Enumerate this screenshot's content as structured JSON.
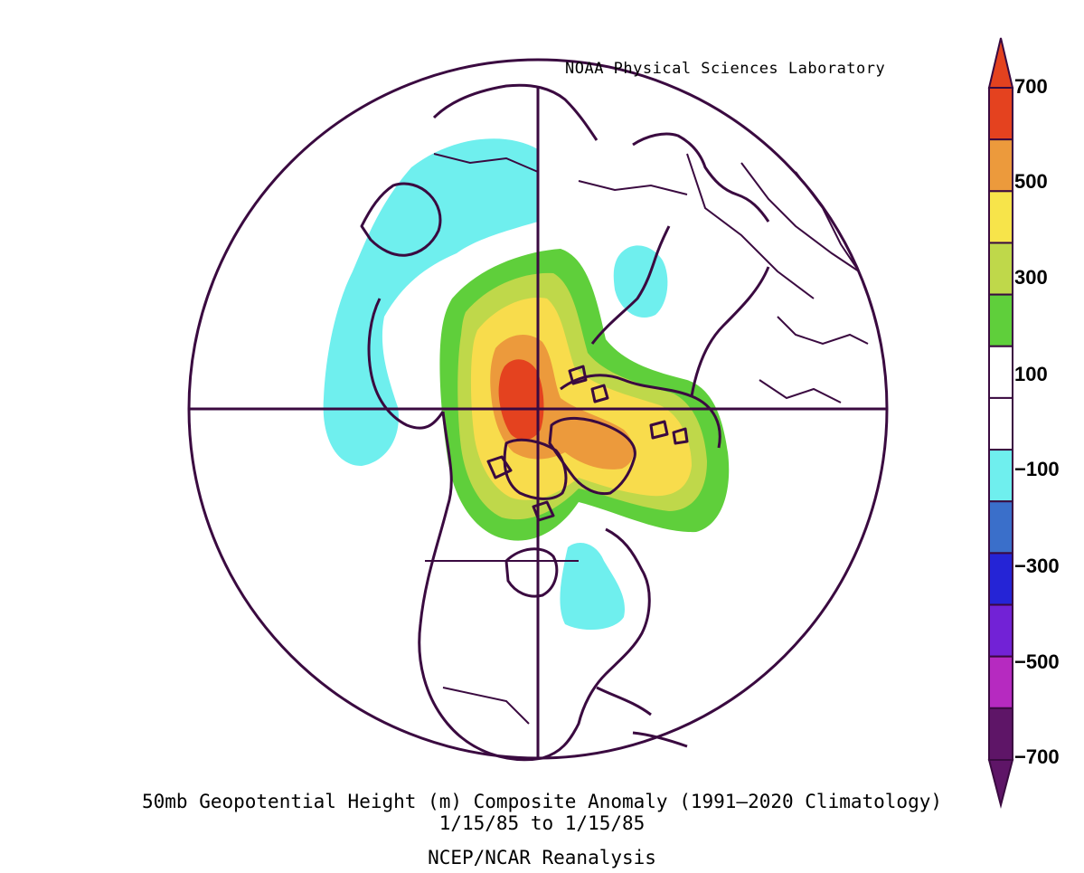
{
  "credit": "NOAA Physical Sciences Laboratory",
  "title": "50mb Geopotential Height (m) Composite Anomaly (1991–2020 Climatology)",
  "date_range": "1/15/85   to 1/15/85",
  "source": "NCEP/NCAR Reanalysis",
  "projection": "north polar stereographic",
  "colorbar": {
    "labels": [
      "700",
      "500",
      "300",
      "100",
      "−100",
      "−300",
      "−500",
      "−700"
    ],
    "colors": [
      "#e4421f",
      "#ec9a3c",
      "#f7e44a",
      "#bfd84a",
      "#5fcf3b",
      "#ffffff",
      "#ffffff",
      "#6fefee",
      "#3a6fca",
      "#2524d6",
      "#7222d6",
      "#b62ac0",
      "#5e1567"
    ],
    "outline_color": "#3a0a40"
  },
  "anomaly_colors": {
    "pos_700": "#e4421f",
    "pos_500": "#ec9a3c",
    "pos_400": "#f7e44a",
    "pos_300": "#f8dc4c",
    "pos_200": "#bfd84a",
    "pos_100": "#5fcf3b",
    "neg_100": "#6fefee"
  }
}
